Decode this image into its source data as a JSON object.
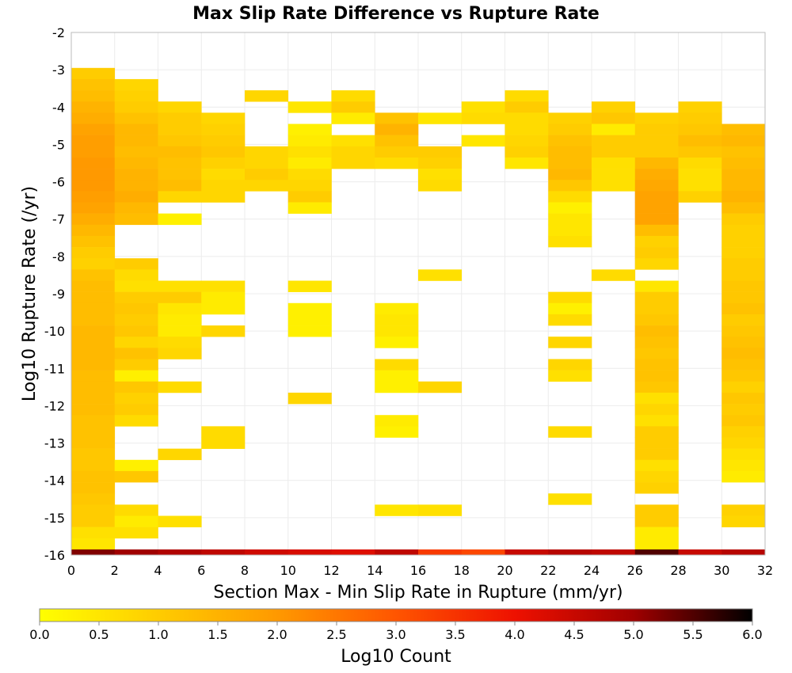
{
  "chart_data": {
    "type": "heatmap",
    "title": "Max Slip Rate Difference vs Rupture Rate",
    "xlabel": "Section Max - Min Slip Rate in Rupture (mm/yr)",
    "ylabel": "Log10 Rupture Rate (/yr)",
    "xlim": [
      0,
      32
    ],
    "ylim": [
      -16,
      -2
    ],
    "x_ticks": [
      "0",
      "2",
      "4",
      "6",
      "8",
      "10",
      "12",
      "14",
      "16",
      "18",
      "20",
      "22",
      "24",
      "26",
      "28",
      "30",
      "32"
    ],
    "y_ticks": [
      "-2",
      "-3",
      "-4",
      "-5",
      "-6",
      "-7",
      "-8",
      "-9",
      "-10",
      "-11",
      "-12",
      "-13",
      "-14",
      "-15",
      "-16"
    ],
    "grid": true,
    "x_bin_width": 2,
    "y_bin_height": 0.3,
    "colorbar": {
      "label": "Log10 Count",
      "range": [
        0,
        6
      ],
      "ticks": [
        "0.0",
        "0.5",
        "1.0",
        "1.5",
        "2.0",
        "2.5",
        "3.0",
        "3.5",
        "4.0",
        "4.5",
        "5.0",
        "5.5",
        "6.0"
      ],
      "stops": [
        "#ffff00",
        "#ffcc00",
        "#ff9900",
        "#ff5500",
        "#ee1100",
        "#a00000",
        "#000000"
      ]
    },
    "columns": [
      {
        "x": 1,
        "cells": [
          [
            -3.1,
            1.0
          ],
          [
            -3.4,
            1.2
          ],
          [
            -3.7,
            1.3
          ],
          [
            -4.0,
            1.5
          ],
          [
            -4.3,
            1.6
          ],
          [
            -4.6,
            1.8
          ],
          [
            -4.9,
            1.9
          ],
          [
            -5.2,
            1.9
          ],
          [
            -5.5,
            2.0
          ],
          [
            -5.8,
            2.0
          ],
          [
            -6.1,
            2.0
          ],
          [
            -6.4,
            1.9
          ],
          [
            -6.7,
            1.8
          ],
          [
            -7.0,
            1.6
          ],
          [
            -7.3,
            1.4
          ],
          [
            -7.6,
            1.2
          ],
          [
            -7.9,
            1.0
          ],
          [
            -8.2,
            0.9
          ],
          [
            -8.5,
            1.2
          ],
          [
            -8.8,
            1.3
          ],
          [
            -9.1,
            1.3
          ],
          [
            -9.4,
            1.3
          ],
          [
            -9.7,
            1.3
          ],
          [
            -10.0,
            1.4
          ],
          [
            -10.3,
            1.4
          ],
          [
            -10.6,
            1.4
          ],
          [
            -10.9,
            1.4
          ],
          [
            -11.2,
            1.3
          ],
          [
            -11.5,
            1.3
          ],
          [
            -11.8,
            1.3
          ],
          [
            -12.1,
            1.3
          ],
          [
            -12.4,
            1.2
          ],
          [
            -12.7,
            1.2
          ],
          [
            -13.0,
            1.2
          ],
          [
            -13.3,
            1.1
          ],
          [
            -13.6,
            1.1
          ],
          [
            -13.9,
            1.2
          ],
          [
            -14.2,
            1.2
          ],
          [
            -14.5,
            1.1
          ],
          [
            -14.8,
            1.0
          ],
          [
            -15.1,
            1.0
          ],
          [
            -15.4,
            0.6
          ],
          [
            -15.7,
            0.5
          ],
          [
            -16.0,
            5.2
          ]
        ]
      },
      {
        "x": 3,
        "cells": [
          [
            -3.4,
            0.8
          ],
          [
            -3.7,
            0.9
          ],
          [
            -4.0,
            1.0
          ],
          [
            -4.3,
            1.2
          ],
          [
            -4.6,
            1.4
          ],
          [
            -4.9,
            1.4
          ],
          [
            -5.2,
            1.3
          ],
          [
            -5.5,
            1.4
          ],
          [
            -5.8,
            1.5
          ],
          [
            -6.1,
            1.5
          ],
          [
            -6.4,
            1.6
          ],
          [
            -6.7,
            1.4
          ],
          [
            -7.0,
            1.3
          ],
          [
            -8.2,
            1.0
          ],
          [
            -8.5,
            0.7
          ],
          [
            -8.8,
            0.6
          ],
          [
            -9.1,
            1.0
          ],
          [
            -9.4,
            1.1
          ],
          [
            -9.7,
            1.0
          ],
          [
            -10.0,
            1.1
          ],
          [
            -10.3,
            0.8
          ],
          [
            -10.6,
            1.2
          ],
          [
            -10.9,
            1.0
          ],
          [
            -11.2,
            0.3
          ],
          [
            -11.5,
            1.1
          ],
          [
            -11.8,
            0.9
          ],
          [
            -12.1,
            1.0
          ],
          [
            -12.4,
            0.7
          ],
          [
            -13.6,
            0.3
          ],
          [
            -13.9,
            1.1
          ],
          [
            -14.8,
            0.7
          ],
          [
            -15.1,
            0.4
          ],
          [
            -15.4,
            0.6
          ],
          [
            -16.0,
            5.0
          ]
        ]
      },
      {
        "x": 5,
        "cells": [
          [
            -4.0,
            0.8
          ],
          [
            -4.3,
            1.0
          ],
          [
            -4.6,
            1.0
          ],
          [
            -4.9,
            1.1
          ],
          [
            -5.2,
            1.3
          ],
          [
            -5.5,
            1.2
          ],
          [
            -5.8,
            1.2
          ],
          [
            -6.1,
            1.3
          ],
          [
            -6.4,
            0.8
          ],
          [
            -7.0,
            0.3
          ],
          [
            -8.8,
            0.6
          ],
          [
            -9.1,
            1.0
          ],
          [
            -9.4,
            0.5
          ],
          [
            -9.7,
            0.4
          ],
          [
            -10.0,
            0.4
          ],
          [
            -10.3,
            0.7
          ],
          [
            -10.6,
            0.8
          ],
          [
            -11.5,
            0.7
          ],
          [
            -13.3,
            0.8
          ],
          [
            -15.1,
            0.6
          ],
          [
            -16.0,
            4.8
          ]
        ]
      },
      {
        "x": 7,
        "cells": [
          [
            -4.3,
            0.8
          ],
          [
            -4.6,
            0.9
          ],
          [
            -4.9,
            1.0
          ],
          [
            -5.2,
            1.1
          ],
          [
            -5.5,
            0.9
          ],
          [
            -5.8,
            0.7
          ],
          [
            -6.1,
            0.8
          ],
          [
            -6.4,
            0.8
          ],
          [
            -8.8,
            0.6
          ],
          [
            -9.1,
            0.4
          ],
          [
            -9.4,
            0.4
          ],
          [
            -10.0,
            0.8
          ],
          [
            -12.7,
            0.7
          ],
          [
            -13.0,
            0.7
          ],
          [
            -16.0,
            4.6
          ]
        ]
      },
      {
        "x": 9,
        "cells": [
          [
            -3.7,
            0.8
          ],
          [
            -5.2,
            0.8
          ],
          [
            -5.5,
            0.8
          ],
          [
            -5.8,
            1.0
          ],
          [
            -6.1,
            0.8
          ],
          [
            -16.0,
            4.4
          ]
        ]
      },
      {
        "x": 11,
        "cells": [
          [
            -4.0,
            0.5
          ],
          [
            -4.6,
            0.3
          ],
          [
            -4.9,
            0.4
          ],
          [
            -5.2,
            0.6
          ],
          [
            -5.5,
            0.4
          ],
          [
            -5.8,
            0.7
          ],
          [
            -6.1,
            0.8
          ],
          [
            -6.4,
            1.0
          ],
          [
            -6.7,
            0.4
          ],
          [
            -8.8,
            0.5
          ],
          [
            -9.4,
            0.3
          ],
          [
            -9.7,
            0.3
          ],
          [
            -10.0,
            0.3
          ],
          [
            -11.8,
            0.8
          ],
          [
            -16.0,
            4.3
          ]
        ]
      },
      {
        "x": 13,
        "cells": [
          [
            -3.7,
            0.7
          ],
          [
            -4.0,
            1.0
          ],
          [
            -4.3,
            0.4
          ],
          [
            -4.9,
            0.6
          ],
          [
            -5.2,
            0.8
          ],
          [
            -5.5,
            0.8
          ],
          [
            -16.0,
            4.2
          ]
        ]
      },
      {
        "x": 15,
        "cells": [
          [
            -4.3,
            1.2
          ],
          [
            -4.6,
            1.5
          ],
          [
            -4.9,
            1.2
          ],
          [
            -5.2,
            1.0
          ],
          [
            -5.5,
            0.7
          ],
          [
            -9.4,
            0.4
          ],
          [
            -9.7,
            0.5
          ],
          [
            -10.0,
            0.5
          ],
          [
            -10.3,
            0.3
          ],
          [
            -10.9,
            0.7
          ],
          [
            -11.2,
            0.3
          ],
          [
            -11.5,
            0.3
          ],
          [
            -12.4,
            0.4
          ],
          [
            -12.7,
            0.3
          ],
          [
            -14.8,
            0.5
          ],
          [
            -16.0,
            4.6
          ]
        ]
      },
      {
        "x": 17,
        "cells": [
          [
            -4.3,
            0.5
          ],
          [
            -5.2,
            1.0
          ],
          [
            -5.5,
            0.9
          ],
          [
            -5.8,
            0.6
          ],
          [
            -6.1,
            0.7
          ],
          [
            -8.5,
            0.6
          ],
          [
            -11.5,
            0.8
          ],
          [
            -14.8,
            0.6
          ],
          [
            -16.0,
            3.4
          ]
        ]
      },
      {
        "x": 19,
        "cells": [
          [
            -4.0,
            0.6
          ],
          [
            -4.3,
            0.7
          ],
          [
            -4.9,
            0.5
          ],
          [
            -16.0,
            3.2
          ]
        ]
      },
      {
        "x": 21,
        "cells": [
          [
            -3.7,
            0.7
          ],
          [
            -4.0,
            1.0
          ],
          [
            -4.3,
            0.7
          ],
          [
            -4.6,
            0.7
          ],
          [
            -4.9,
            0.8
          ],
          [
            -5.2,
            0.9
          ],
          [
            -5.5,
            0.5
          ],
          [
            -16.0,
            4.5
          ]
        ]
      },
      {
        "x": 23,
        "cells": [
          [
            -4.3,
            0.9
          ],
          [
            -4.6,
            1.0
          ],
          [
            -4.9,
            1.2
          ],
          [
            -5.2,
            1.3
          ],
          [
            -5.5,
            1.3
          ],
          [
            -5.8,
            1.4
          ],
          [
            -6.1,
            1.1
          ],
          [
            -6.4,
            0.7
          ],
          [
            -6.7,
            0.3
          ],
          [
            -7.0,
            0.5
          ],
          [
            -7.3,
            0.5
          ],
          [
            -7.6,
            0.6
          ],
          [
            -9.1,
            0.7
          ],
          [
            -9.4,
            0.3
          ],
          [
            -9.7,
            0.7
          ],
          [
            -10.3,
            0.8
          ],
          [
            -10.9,
            0.8
          ],
          [
            -11.2,
            0.6
          ],
          [
            -12.7,
            0.7
          ],
          [
            -14.5,
            0.6
          ],
          [
            -16.0,
            4.7
          ]
        ]
      },
      {
        "x": 25,
        "cells": [
          [
            -4.0,
            0.9
          ],
          [
            -4.3,
            1.1
          ],
          [
            -4.6,
            0.4
          ],
          [
            -4.9,
            1.0
          ],
          [
            -5.2,
            1.0
          ],
          [
            -5.5,
            0.6
          ],
          [
            -5.8,
            0.6
          ],
          [
            -6.1,
            0.6
          ],
          [
            -8.5,
            0.7
          ],
          [
            -16.0,
            4.6
          ]
        ]
      },
      {
        "x": 27,
        "cells": [
          [
            -4.3,
            0.9
          ],
          [
            -4.6,
            1.0
          ],
          [
            -4.9,
            1.0
          ],
          [
            -5.2,
            1.0
          ],
          [
            -5.5,
            1.4
          ],
          [
            -5.8,
            1.6
          ],
          [
            -6.1,
            1.7
          ],
          [
            -6.4,
            1.8
          ],
          [
            -6.7,
            1.8
          ],
          [
            -7.0,
            1.8
          ],
          [
            -7.3,
            1.3
          ],
          [
            -7.6,
            0.9
          ],
          [
            -7.9,
            1.0
          ],
          [
            -8.2,
            0.8
          ],
          [
            -8.8,
            0.5
          ],
          [
            -9.1,
            1.0
          ],
          [
            -9.4,
            1.0
          ],
          [
            -9.7,
            1.1
          ],
          [
            -10.0,
            1.3
          ],
          [
            -10.3,
            1.2
          ],
          [
            -10.6,
            1.1
          ],
          [
            -10.9,
            1.2
          ],
          [
            -11.2,
            1.2
          ],
          [
            -11.5,
            1.1
          ],
          [
            -11.8,
            0.6
          ],
          [
            -12.1,
            0.8
          ],
          [
            -12.4,
            0.6
          ],
          [
            -12.7,
            1.0
          ],
          [
            -13.0,
            1.0
          ],
          [
            -13.3,
            1.0
          ],
          [
            -13.6,
            0.6
          ],
          [
            -13.9,
            0.8
          ],
          [
            -14.2,
            0.9
          ],
          [
            -14.8,
            1.0
          ],
          [
            -15.1,
            1.0
          ],
          [
            -15.4,
            0.4
          ],
          [
            -15.7,
            0.4
          ],
          [
            -16.0,
            5.5
          ]
        ]
      },
      {
        "x": 29,
        "cells": [
          [
            -4.0,
            0.9
          ],
          [
            -4.3,
            1.0
          ],
          [
            -4.6,
            1.1
          ],
          [
            -4.9,
            1.3
          ],
          [
            -5.2,
            1.1
          ],
          [
            -5.5,
            0.7
          ],
          [
            -5.8,
            0.6
          ],
          [
            -6.1,
            0.6
          ],
          [
            -6.4,
            0.9
          ],
          [
            -16.0,
            4.5
          ]
        ]
      },
      {
        "x": 31,
        "cells": [
          [
            -4.6,
            1.3
          ],
          [
            -4.9,
            1.4
          ],
          [
            -5.2,
            1.2
          ],
          [
            -5.5,
            1.3
          ],
          [
            -5.8,
            1.4
          ],
          [
            -6.1,
            1.4
          ],
          [
            -6.4,
            1.5
          ],
          [
            -6.7,
            1.3
          ],
          [
            -7.0,
            1.0
          ],
          [
            -7.3,
            0.9
          ],
          [
            -7.6,
            0.9
          ],
          [
            -7.9,
            0.9
          ],
          [
            -8.2,
            1.0
          ],
          [
            -8.5,
            1.0
          ],
          [
            -8.8,
            1.1
          ],
          [
            -9.1,
            1.1
          ],
          [
            -9.4,
            1.2
          ],
          [
            -9.7,
            1.0
          ],
          [
            -10.0,
            1.1
          ],
          [
            -10.3,
            1.2
          ],
          [
            -10.6,
            1.3
          ],
          [
            -10.9,
            1.2
          ],
          [
            -11.2,
            1.1
          ],
          [
            -11.5,
            0.9
          ],
          [
            -11.8,
            1.1
          ],
          [
            -12.1,
            1.0
          ],
          [
            -12.4,
            1.1
          ],
          [
            -12.7,
            0.9
          ],
          [
            -13.0,
            0.8
          ],
          [
            -13.3,
            0.6
          ],
          [
            -13.6,
            0.5
          ],
          [
            -13.9,
            0.4
          ],
          [
            -14.8,
            0.9
          ],
          [
            -15.1,
            0.8
          ],
          [
            -16.0,
            4.7
          ]
        ]
      }
    ]
  }
}
